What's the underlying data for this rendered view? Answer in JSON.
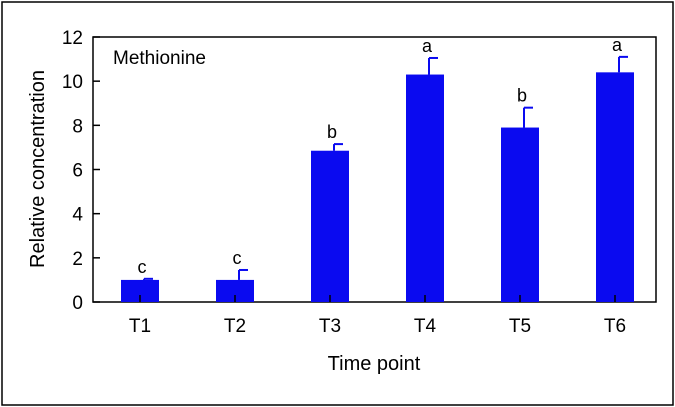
{
  "chart_data": {
    "type": "bar",
    "annotation": "Methionine",
    "xlabel": "Time point",
    "ylabel": "Relative concentration",
    "categories": [
      "T1",
      "T2",
      "T3",
      "T4",
      "T5",
      "T6"
    ],
    "values": [
      1.0,
      1.0,
      6.85,
      10.3,
      7.9,
      10.4
    ],
    "errors": [
      0.05,
      0.45,
      0.3,
      0.75,
      0.9,
      0.7
    ],
    "significance": [
      "c",
      "c",
      "b",
      "a",
      "b",
      "a"
    ],
    "ylim": [
      0,
      12
    ],
    "yticks": [
      "0",
      "2",
      "4",
      "6",
      "8",
      "10",
      "12"
    ],
    "bar_color": "#0a0af0",
    "grid": false,
    "legend": "none"
  }
}
